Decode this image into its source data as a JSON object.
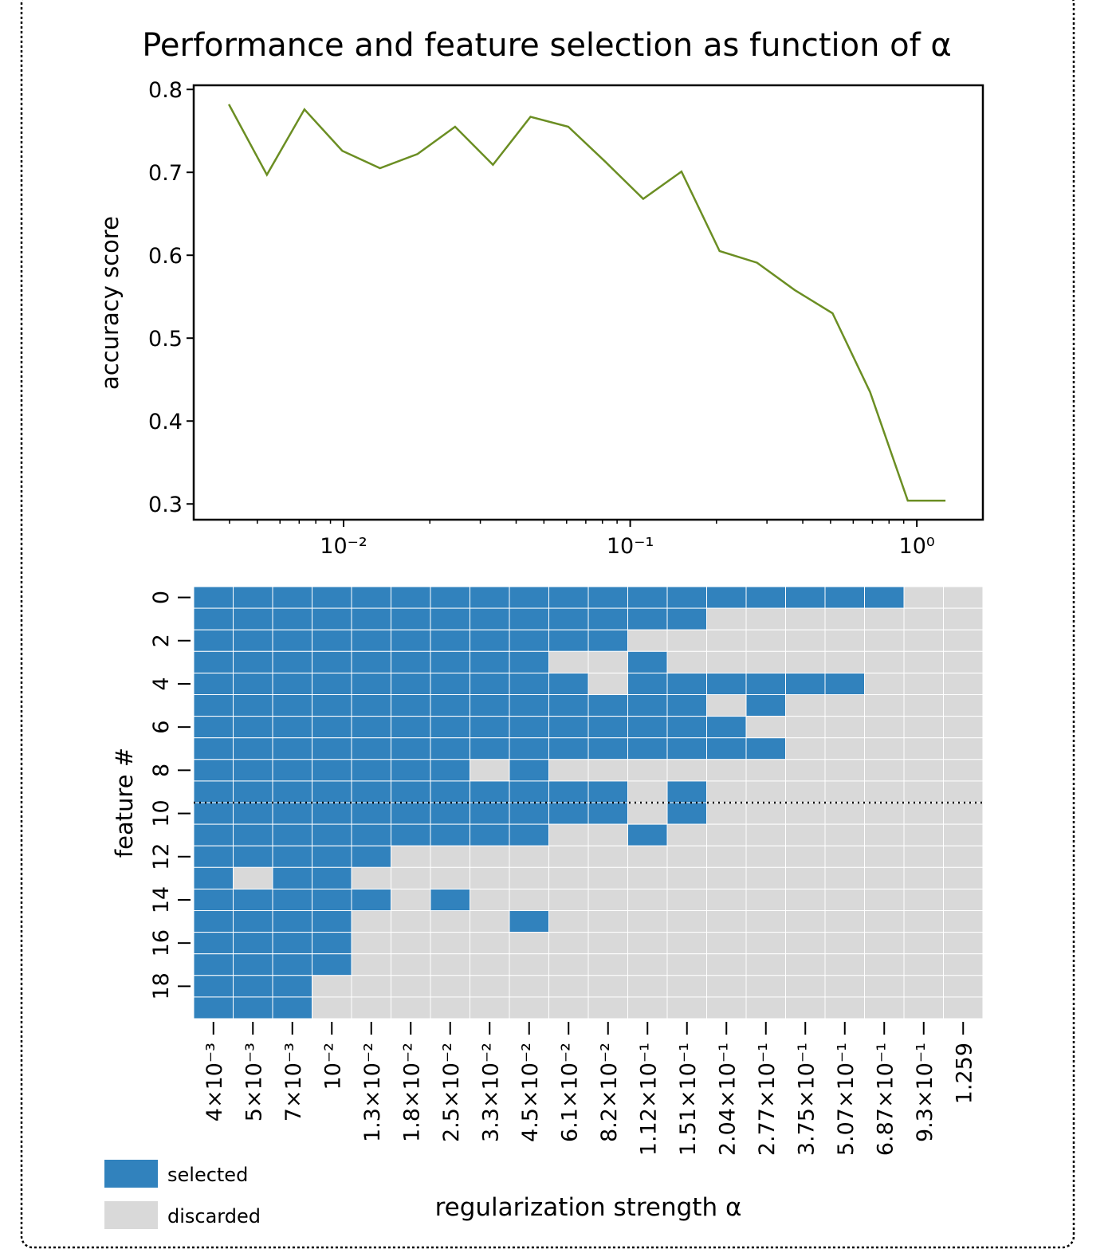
{
  "chart_data": [
    {
      "type": "line",
      "title": "Performance and feature selection as function of α",
      "ylabel": "accuracy score",
      "x": [
        0.00398,
        0.0054,
        0.0073,
        0.0099,
        0.0134,
        0.0181,
        0.0245,
        0.0332,
        0.0449,
        0.0608,
        0.0823,
        0.111,
        0.151,
        0.205,
        0.277,
        0.375,
        0.508,
        0.687,
        0.93,
        1.259
      ],
      "values": [
        0.782,
        0.697,
        0.776,
        0.726,
        0.705,
        0.722,
        0.755,
        0.709,
        0.767,
        0.755,
        0.712,
        0.668,
        0.701,
        0.605,
        0.591,
        0.558,
        0.53,
        0.435,
        0.304,
        0.304
      ],
      "color": "#6b8e23",
      "xscale": "log",
      "xlim": [
        0.003,
        1.7
      ],
      "xticks": [
        {
          "value": 0.01,
          "label": "10⁻²"
        },
        {
          "value": 0.1,
          "label": "10⁻¹"
        },
        {
          "value": 1,
          "label": "10⁰"
        }
      ],
      "xminorticks": [
        0.004,
        0.005,
        0.006,
        0.007,
        0.008,
        0.009,
        0.02,
        0.03,
        0.04,
        0.05,
        0.06,
        0.07,
        0.08,
        0.09,
        0.2,
        0.3,
        0.4,
        0.5,
        0.6,
        0.7,
        0.8,
        0.9
      ],
      "ylim": [
        0.281,
        0.805
      ],
      "yticks": [
        0.3,
        0.4,
        0.5,
        0.6,
        0.7,
        0.8
      ]
    },
    {
      "type": "heatmap",
      "xlabel": "regularization strength α",
      "ylabel": "feature #",
      "categories": [
        "4×10⁻³",
        "5×10⁻³",
        "7×10⁻³",
        "10⁻²",
        "1.3×10⁻²",
        "1.8×10⁻²",
        "2.5×10⁻²",
        "3.3×10⁻²",
        "4.5×10⁻²",
        "6.1×10⁻²",
        "8.2×10⁻²",
        "1.12×10⁻¹",
        "1.51×10⁻¹",
        "2.04×10⁻¹",
        "2.77×10⁻¹",
        "3.75×10⁻¹",
        "5.07×10⁻¹",
        "6.87×10⁻¹",
        "9.3×10⁻¹",
        "1.259"
      ],
      "ylim": [
        -0.5,
        19.5
      ],
      "yticks": [
        0,
        2,
        4,
        6,
        8,
        10,
        12,
        14,
        16,
        18
      ],
      "hline": 9.5,
      "matrix": [
        [
          1,
          1,
          1,
          1,
          1,
          1,
          1,
          1,
          1,
          1,
          1,
          1,
          1,
          1,
          1,
          1,
          1,
          1,
          0,
          0
        ],
        [
          1,
          1,
          1,
          1,
          1,
          1,
          1,
          1,
          1,
          1,
          1,
          1,
          1,
          0,
          0,
          0,
          0,
          0,
          0,
          0
        ],
        [
          1,
          1,
          1,
          1,
          1,
          1,
          1,
          1,
          1,
          1,
          1,
          0,
          0,
          0,
          0,
          0,
          0,
          0,
          0,
          0
        ],
        [
          1,
          1,
          1,
          1,
          1,
          1,
          1,
          1,
          1,
          0,
          0,
          1,
          0,
          0,
          0,
          0,
          0,
          0,
          0,
          0
        ],
        [
          1,
          1,
          1,
          1,
          1,
          1,
          1,
          1,
          1,
          1,
          0,
          1,
          1,
          1,
          1,
          1,
          1,
          0,
          0,
          0
        ],
        [
          1,
          1,
          1,
          1,
          1,
          1,
          1,
          1,
          1,
          1,
          1,
          1,
          1,
          0,
          1,
          0,
          0,
          0,
          0,
          0
        ],
        [
          1,
          1,
          1,
          1,
          1,
          1,
          1,
          1,
          1,
          1,
          1,
          1,
          1,
          1,
          0,
          0,
          0,
          0,
          0,
          0
        ],
        [
          1,
          1,
          1,
          1,
          1,
          1,
          1,
          1,
          1,
          1,
          1,
          1,
          1,
          1,
          1,
          0,
          0,
          0,
          0,
          0
        ],
        [
          1,
          1,
          1,
          1,
          1,
          1,
          1,
          0,
          1,
          0,
          0,
          0,
          0,
          0,
          0,
          0,
          0,
          0,
          0,
          0
        ],
        [
          1,
          1,
          1,
          1,
          1,
          1,
          1,
          1,
          1,
          1,
          1,
          0,
          1,
          0,
          0,
          0,
          0,
          0,
          0,
          0
        ],
        [
          1,
          1,
          1,
          1,
          1,
          1,
          1,
          1,
          1,
          1,
          1,
          0,
          1,
          0,
          0,
          0,
          0,
          0,
          0,
          0
        ],
        [
          1,
          1,
          1,
          1,
          1,
          1,
          1,
          1,
          1,
          0,
          0,
          1,
          0,
          0,
          0,
          0,
          0,
          0,
          0,
          0
        ],
        [
          1,
          1,
          1,
          1,
          1,
          0,
          0,
          0,
          0,
          0,
          0,
          0,
          0,
          0,
          0,
          0,
          0,
          0,
          0,
          0
        ],
        [
          1,
          0,
          1,
          1,
          0,
          0,
          0,
          0,
          0,
          0,
          0,
          0,
          0,
          0,
          0,
          0,
          0,
          0,
          0,
          0
        ],
        [
          1,
          1,
          1,
          1,
          1,
          0,
          1,
          0,
          0,
          0,
          0,
          0,
          0,
          0,
          0,
          0,
          0,
          0,
          0,
          0
        ],
        [
          1,
          1,
          1,
          1,
          0,
          0,
          0,
          0,
          1,
          0,
          0,
          0,
          0,
          0,
          0,
          0,
          0,
          0,
          0,
          0
        ],
        [
          1,
          1,
          1,
          1,
          0,
          0,
          0,
          0,
          0,
          0,
          0,
          0,
          0,
          0,
          0,
          0,
          0,
          0,
          0,
          0
        ],
        [
          1,
          1,
          1,
          1,
          0,
          0,
          0,
          0,
          0,
          0,
          0,
          0,
          0,
          0,
          0,
          0,
          0,
          0,
          0,
          0
        ],
        [
          1,
          1,
          1,
          0,
          0,
          0,
          0,
          0,
          0,
          0,
          0,
          0,
          0,
          0,
          0,
          0,
          0,
          0,
          0,
          0
        ],
        [
          1,
          1,
          1,
          0,
          0,
          0,
          0,
          0,
          0,
          0,
          0,
          0,
          0,
          0,
          0,
          0,
          0,
          0,
          0,
          0
        ]
      ],
      "legend": [
        {
          "name": "selected",
          "color": "#3182bd",
          "value": 1
        },
        {
          "name": "discarded",
          "color": "#d9d9d9",
          "value": 0
        }
      ]
    }
  ]
}
